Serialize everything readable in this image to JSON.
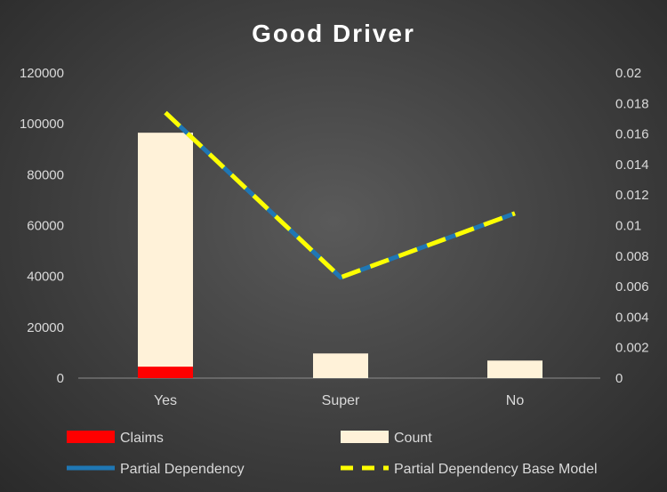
{
  "chart_data": {
    "type": "bar",
    "title": "Good Driver",
    "categories": [
      "Yes",
      "Super",
      "No"
    ],
    "series": [
      {
        "name": "Claims",
        "kind": "bar",
        "axis": "left",
        "color": "#ff0000",
        "values": [
          4500,
          0,
          0
        ]
      },
      {
        "name": "Count",
        "kind": "bar",
        "axis": "left",
        "color": "#fff2d9",
        "values": [
          96500,
          9700,
          6900
        ]
      },
      {
        "name": "Partial Dependency",
        "kind": "line",
        "axis": "right",
        "color": "#1f77b4",
        "style": "solid",
        "values": [
          0.0174,
          0.0066,
          0.0108
        ]
      },
      {
        "name": "Partial Dependency Base Model",
        "kind": "line",
        "axis": "right",
        "color": "#ffff00",
        "style": "dashed",
        "values": [
          0.0174,
          0.0066,
          0.0108
        ]
      }
    ],
    "y_left": {
      "ylim": [
        0,
        120000
      ],
      "ticks": [
        "0",
        "20000",
        "40000",
        "60000",
        "80000",
        "100000",
        "120000"
      ]
    },
    "y_right": {
      "ylim": [
        0,
        0.02
      ],
      "ticks": [
        "0",
        "0.002",
        "0.004",
        "0.006",
        "0.008",
        "0.01",
        "0.012",
        "0.014",
        "0.016",
        "0.018",
        "0.02"
      ]
    },
    "grid": false,
    "legend": "bottom"
  }
}
